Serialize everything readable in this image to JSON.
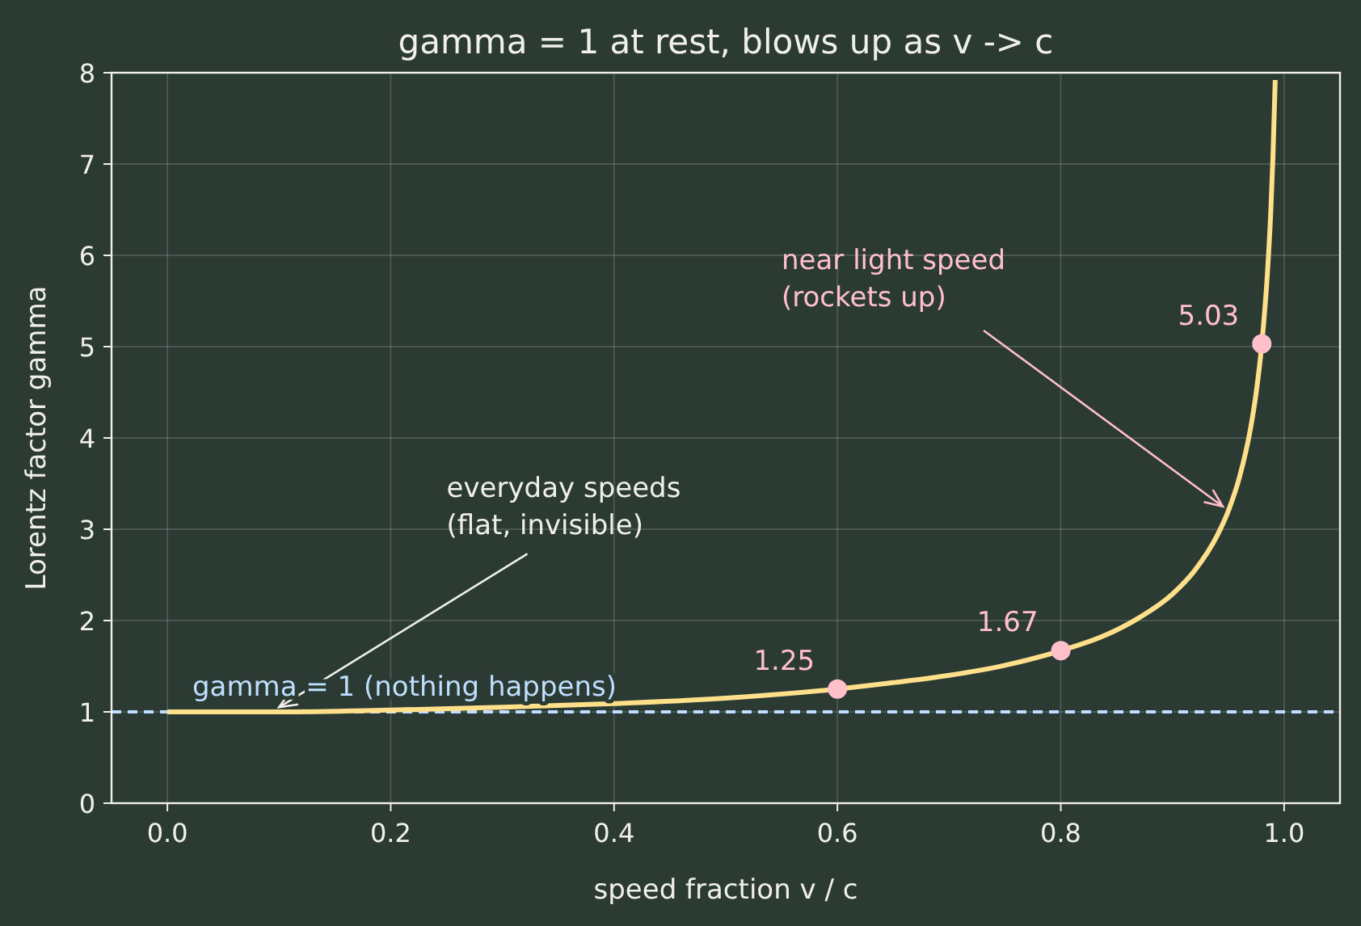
{
  "chart_data": {
    "type": "line",
    "title": "gamma = 1 at rest, blows up as v -> c",
    "xlabel": "speed fraction  v / c",
    "ylabel": "Lorentz factor  gamma",
    "series": [
      {
        "color": "#ffe08a",
        "x": [
          0,
          0.1,
          0.2,
          0.3,
          0.4,
          0.5,
          0.6,
          0.65,
          0.7,
          0.75,
          0.8,
          0.84,
          0.87,
          0.9,
          0.92,
          0.94,
          0.95,
          0.96,
          0.97,
          0.975,
          0.98,
          0.985,
          0.988,
          0.99,
          0.992
        ],
        "values": [
          1,
          1,
          1.02,
          1.05,
          1.09,
          1.15,
          1.25,
          1.32,
          1.4,
          1.51,
          1.67,
          1.84,
          2.03,
          2.29,
          2.55,
          2.93,
          3.2,
          3.57,
          4.11,
          4.5,
          5.03,
          5.8,
          6.47,
          7.09,
          7.92
        ]
      },
      {
        "type": "scatter",
        "color": "#ffc0cb",
        "x": [
          0.6,
          0.8,
          0.98
        ],
        "values": [
          1.25,
          1.67,
          5.03
        ],
        "value_labels": [
          "1.25",
          "1.67",
          "5.03"
        ]
      }
    ],
    "xlim": [
      -0.05,
      1.05
    ],
    "ylim": [
      0,
      8
    ],
    "xticks": [
      {
        "value": 0,
        "label": "0.0"
      },
      {
        "value": 0.2,
        "label": "0.2"
      },
      {
        "value": 0.4,
        "label": "0.4"
      },
      {
        "value": 0.6,
        "label": "0.6"
      },
      {
        "value": 0.8,
        "label": "0.8"
      },
      {
        "value": 1,
        "label": "1.0"
      }
    ],
    "yticks": [
      0,
      1,
      2,
      3,
      4,
      5,
      6,
      7,
      8
    ],
    "grid": true,
    "ref_lines": [
      {
        "axis": "y",
        "value": 1,
        "label": "gamma = 1 (nothing happens)",
        "color": "#bfdfff",
        "line_style": "dashed"
      }
    ],
    "annotations": [
      {
        "text": "everyday speeds\n(flat, invisible)",
        "x": 0.1,
        "y": 1.05
      },
      {
        "text": "near light speed\n(rockets up)",
        "x": 0.945,
        "y": 3.25
      }
    ]
  }
}
